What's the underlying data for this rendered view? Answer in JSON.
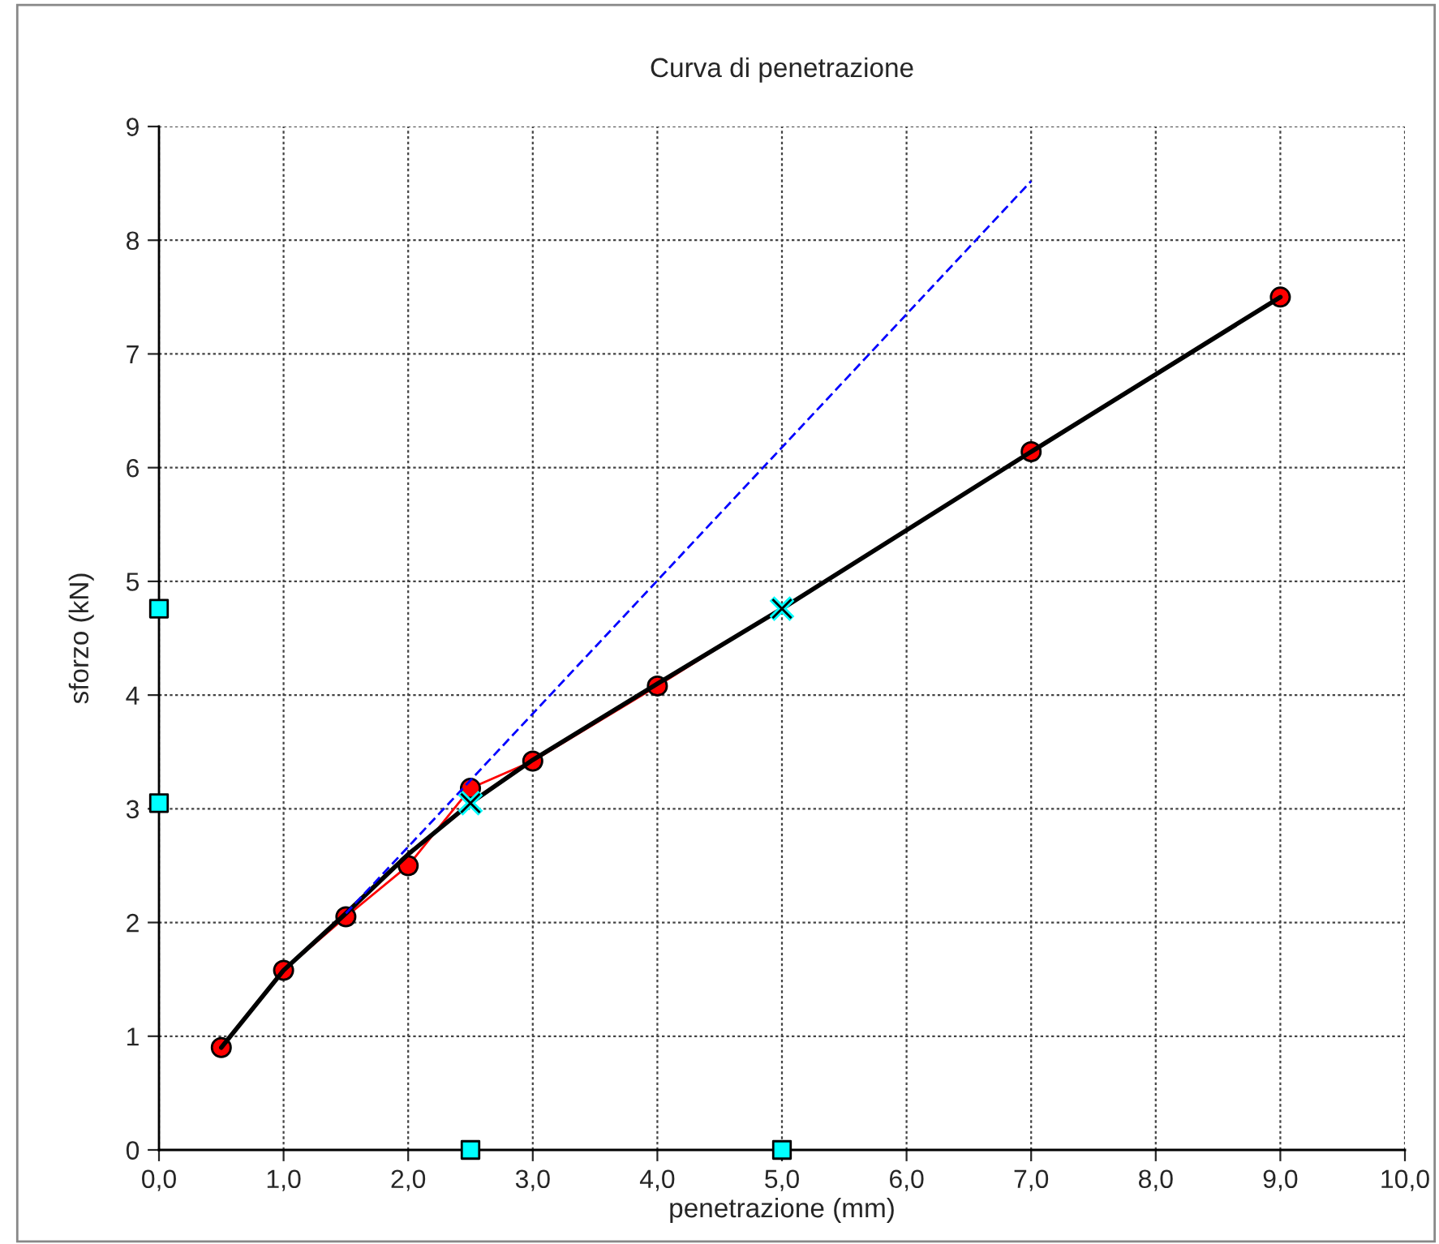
{
  "chart_data": {
    "type": "line",
    "title": "Curva di penetrazione",
    "xlabel": "penetrazione (mm)",
    "ylabel": "sforzo (kN)",
    "series": [
      {
        "type": "line",
        "color": "#ff0000",
        "marker": "circle",
        "line_style": "solid",
        "x": [
          0.5,
          1,
          1.5,
          2,
          2.5,
          3,
          4,
          5,
          7,
          9
        ],
        "values": [
          0.9,
          1.58,
          2.05,
          2.5,
          3.18,
          3.42,
          4.08,
          null,
          6.14,
          7.5
        ]
      },
      {
        "type": "line",
        "color": "#000000",
        "marker": "none",
        "line_style": "solid",
        "x": [
          0.5,
          1,
          1.5,
          2,
          2.5,
          3,
          4,
          5,
          7,
          9
        ],
        "values": [
          0.9,
          1.58,
          2.08,
          2.6,
          3.05,
          3.43,
          4.1,
          4.76,
          6.14,
          7.5
        ]
      },
      {
        "type": "line",
        "color": "#0000ff",
        "marker": "none",
        "line_style": "dashed",
        "x": [
          1.5,
          7
        ],
        "values": [
          2.08,
          8.52
        ]
      },
      {
        "type": "scatter",
        "color": "#00ffff",
        "marker": "square",
        "x": [
          0,
          0,
          2.5,
          5
        ],
        "values": [
          4.76,
          3.05,
          0,
          0
        ]
      },
      {
        "type": "scatter",
        "color": "#00ffff",
        "marker": "cross",
        "x": [
          2.5,
          5
        ],
        "values": [
          3.05,
          4.76
        ]
      }
    ],
    "xlim": [
      0,
      10
    ],
    "ylim": [
      0,
      9
    ],
    "xticks": [
      {
        "value": 0,
        "label": "0,0"
      },
      {
        "value": 1,
        "label": "1,0"
      },
      {
        "value": 2,
        "label": "2,0"
      },
      {
        "value": 3,
        "label": "3,0"
      },
      {
        "value": 4,
        "label": "4,0"
      },
      {
        "value": 5,
        "label": "5,0"
      },
      {
        "value": 6,
        "label": "6,0"
      },
      {
        "value": 7,
        "label": "7,0"
      },
      {
        "value": 8,
        "label": "8,0"
      },
      {
        "value": 9,
        "label": "9,0"
      },
      {
        "value": 10,
        "label": "10,0"
      }
    ],
    "yticks": [
      0,
      1,
      2,
      3,
      4,
      5,
      6,
      7,
      8,
      9
    ],
    "grid": true,
    "legend": false
  }
}
